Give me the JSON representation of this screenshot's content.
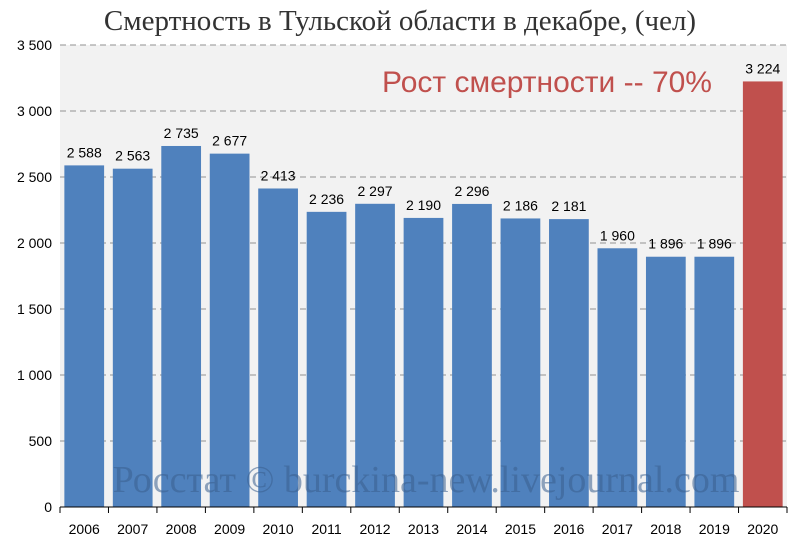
{
  "chart_data": {
    "type": "bar",
    "title": "Смертность в Тульской области в декабре, (чел)",
    "annotation": "Рост смертности -- 70%",
    "watermark": "Росстат © burckina-new.livejournal.com",
    "categories": [
      "2006",
      "2007",
      "2008",
      "2009",
      "2010",
      "2011",
      "2012",
      "2013",
      "2014",
      "2015",
      "2016",
      "2017",
      "2018",
      "2019",
      "2020"
    ],
    "values": [
      2588,
      2563,
      2735,
      2677,
      2413,
      2236,
      2297,
      2190,
      2296,
      2186,
      2181,
      1960,
      1896,
      1896,
      3224
    ],
    "value_labels": [
      "2 588",
      "2 563",
      "2 735",
      "2 677",
      "2 413",
      "2 236",
      "2 297",
      "2 190",
      "2 296",
      "2 186",
      "2 181",
      "1 960",
      "1 896",
      "1 896",
      "3 224"
    ],
    "y_ticks": [
      0,
      500,
      1000,
      1500,
      2000,
      2500,
      3000,
      3500
    ],
    "y_tick_labels": [
      "0",
      "500",
      "1 000",
      "1 500",
      "2 000",
      "2 500",
      "3 000",
      "3 500"
    ],
    "ylim": [
      0,
      3500
    ],
    "xlabel": "",
    "ylabel": "",
    "grid": true,
    "colors": {
      "bar": "#4f81bd",
      "highlight_bar": "#c0504d",
      "annotation": "#c0504d",
      "plot_background": "#f2f2f2",
      "grid": "#a6a6a6"
    },
    "highlight_index": 14
  }
}
